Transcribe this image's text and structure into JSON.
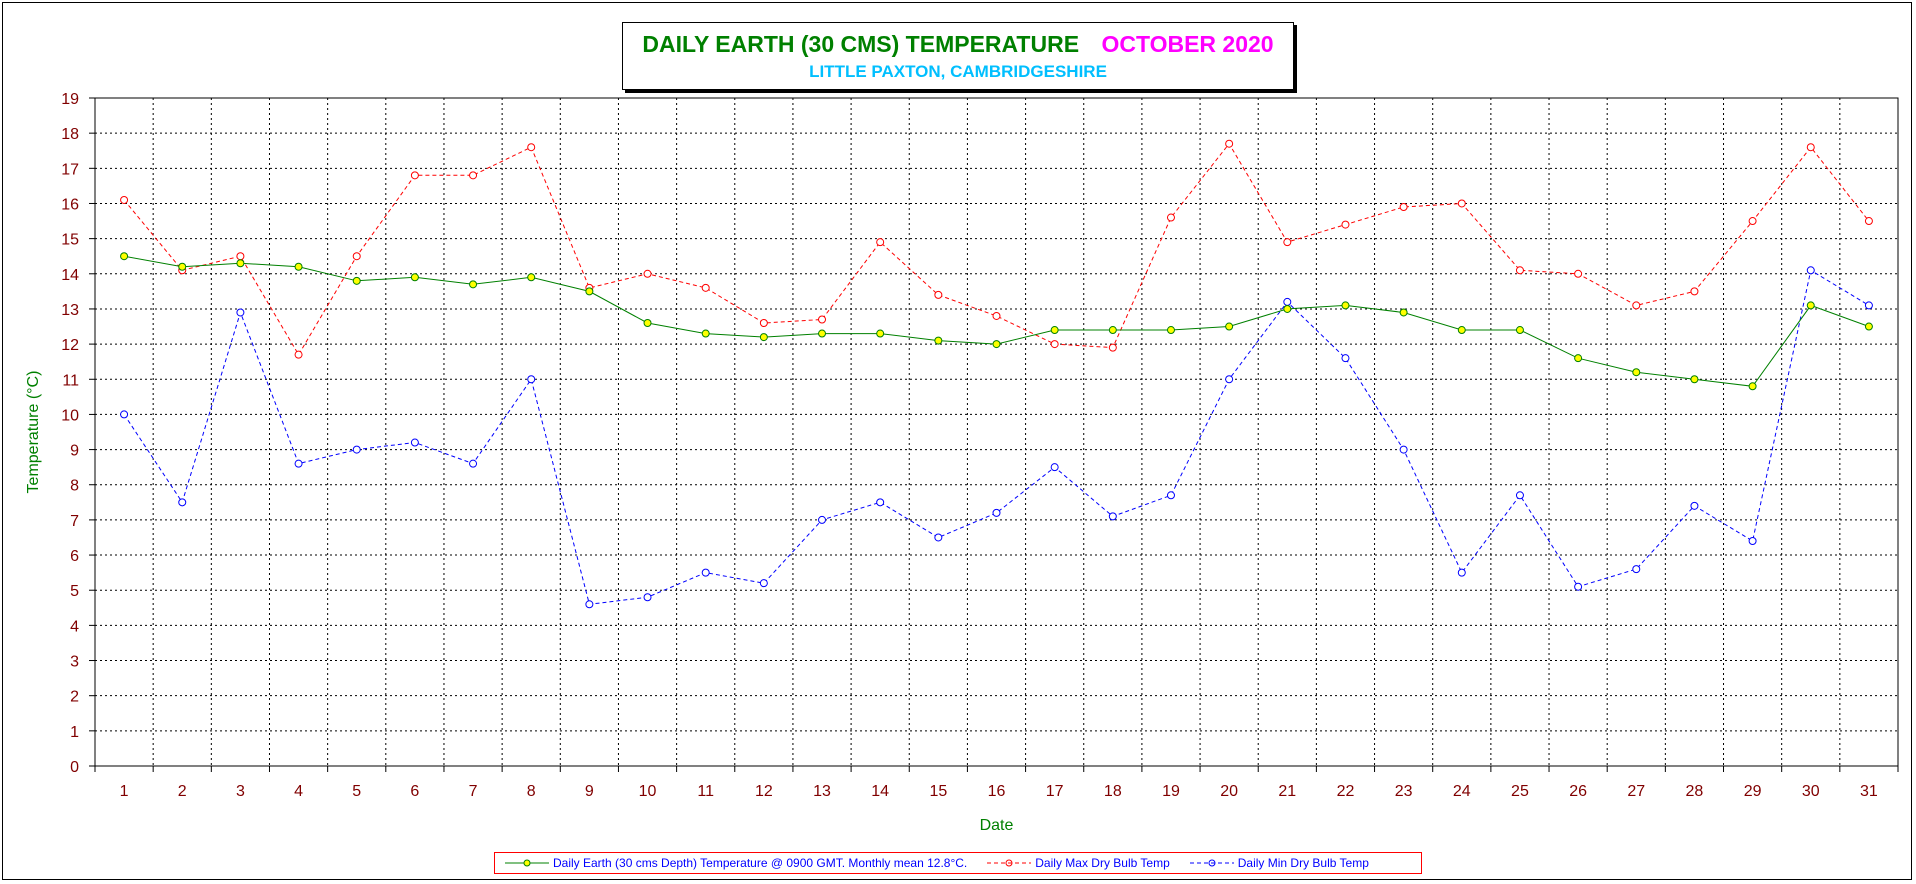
{
  "chart_data": {
    "type": "line",
    "title": "DAILY EARTH (30 CMS) TEMPERATURE",
    "title_month": "OCTOBER 2020",
    "subtitle": "LITTLE PAXTON, CAMBRIDGESHIRE",
    "xlabel": "Date",
    "ylabel": "Temperature (°C)",
    "ylim": [
      0,
      19
    ],
    "y_ticks": [
      0,
      1,
      2,
      3,
      4,
      5,
      6,
      7,
      8,
      9,
      10,
      11,
      12,
      13,
      14,
      15,
      16,
      17,
      18,
      19
    ],
    "grid": true,
    "legend_position": "bottom",
    "categories": [
      "1",
      "2",
      "3",
      "4",
      "5",
      "6",
      "7",
      "8",
      "9",
      "10",
      "11",
      "12",
      "13",
      "14",
      "15",
      "16",
      "17",
      "18",
      "19",
      "20",
      "21",
      "22",
      "23",
      "24",
      "25",
      "26",
      "27",
      "28",
      "29",
      "30",
      "31"
    ],
    "series": [
      {
        "name": "Daily Earth (30 cms Depth) Temperature @ 0900 GMT. Monthly mean 12.8°C.",
        "color": "#008000",
        "marker_fill": "#ffff00",
        "dash": "solid",
        "values": [
          14.5,
          14.2,
          14.3,
          14.2,
          13.8,
          13.9,
          13.7,
          13.9,
          13.5,
          12.6,
          12.3,
          12.2,
          12.3,
          12.3,
          12.1,
          12.0,
          12.4,
          12.4,
          12.4,
          12.5,
          13.0,
          13.1,
          12.9,
          12.4,
          12.4,
          11.6,
          11.2,
          11.0,
          10.8,
          13.1,
          12.5
        ]
      },
      {
        "name": "Daily Max Dry Bulb Temp",
        "color": "#ff0000",
        "marker_fill": "none",
        "dash": "dashed",
        "values": [
          16.1,
          14.1,
          14.5,
          11.7,
          14.5,
          16.8,
          16.8,
          17.6,
          13.6,
          14.0,
          13.6,
          12.6,
          12.7,
          14.9,
          13.4,
          12.8,
          12.0,
          11.9,
          15.6,
          17.7,
          14.9,
          15.4,
          15.9,
          16.0,
          14.1,
          14.0,
          13.1,
          13.5,
          15.5,
          17.6,
          15.5
        ]
      },
      {
        "name": "Daily Min Dry Bulb Temp",
        "color": "#0000ff",
        "marker_fill": "none",
        "dash": "dashed",
        "values": [
          10.0,
          7.5,
          12.9,
          8.6,
          9.0,
          9.2,
          8.6,
          11.0,
          4.6,
          4.8,
          5.5,
          5.2,
          7.0,
          7.5,
          6.5,
          7.2,
          8.5,
          7.1,
          7.7,
          11.0,
          13.2,
          11.6,
          9.0,
          5.5,
          7.7,
          5.1,
          5.6,
          7.4,
          6.4,
          14.1,
          13.1
        ]
      }
    ]
  }
}
